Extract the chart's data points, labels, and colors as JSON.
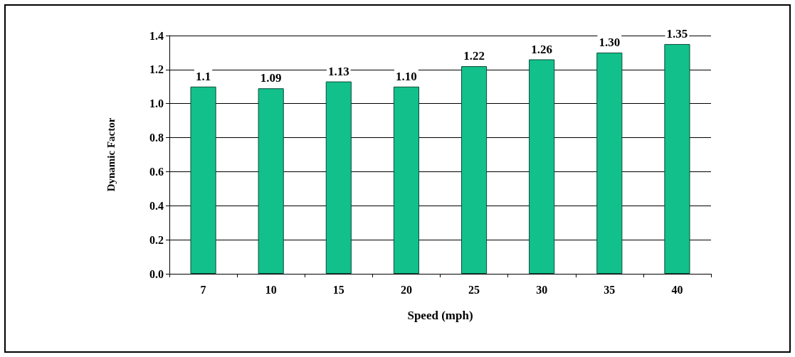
{
  "chart_data": {
    "type": "bar",
    "xlabel": "Speed (mph)",
    "ylabel": "Dynamic Factor",
    "categories": [
      "7",
      "10",
      "15",
      "20",
      "25",
      "30",
      "35",
      "40"
    ],
    "values": [
      1.1,
      1.09,
      1.13,
      1.1,
      1.22,
      1.26,
      1.3,
      1.35
    ],
    "value_labels": [
      "1.1",
      "1.09",
      "1.13",
      "1.10",
      "1.22",
      "1.26",
      "1.30",
      "1.35"
    ],
    "color": "#12c08c",
    "ylim": [
      0,
      1.4
    ],
    "yticks": [
      {
        "value": 0,
        "label": "0.0"
      },
      {
        "value": 0.2,
        "label": "0.2"
      },
      {
        "value": 0.4,
        "label": "0.4"
      },
      {
        "value": 0.6,
        "label": "0.6"
      },
      {
        "value": 0.8,
        "label": "0.8"
      },
      {
        "value": 1.0,
        "label": "1.0"
      },
      {
        "value": 1.2,
        "label": "1.2"
      },
      {
        "value": 1.4,
        "label": "1.4"
      }
    ],
    "grid": "y"
  }
}
